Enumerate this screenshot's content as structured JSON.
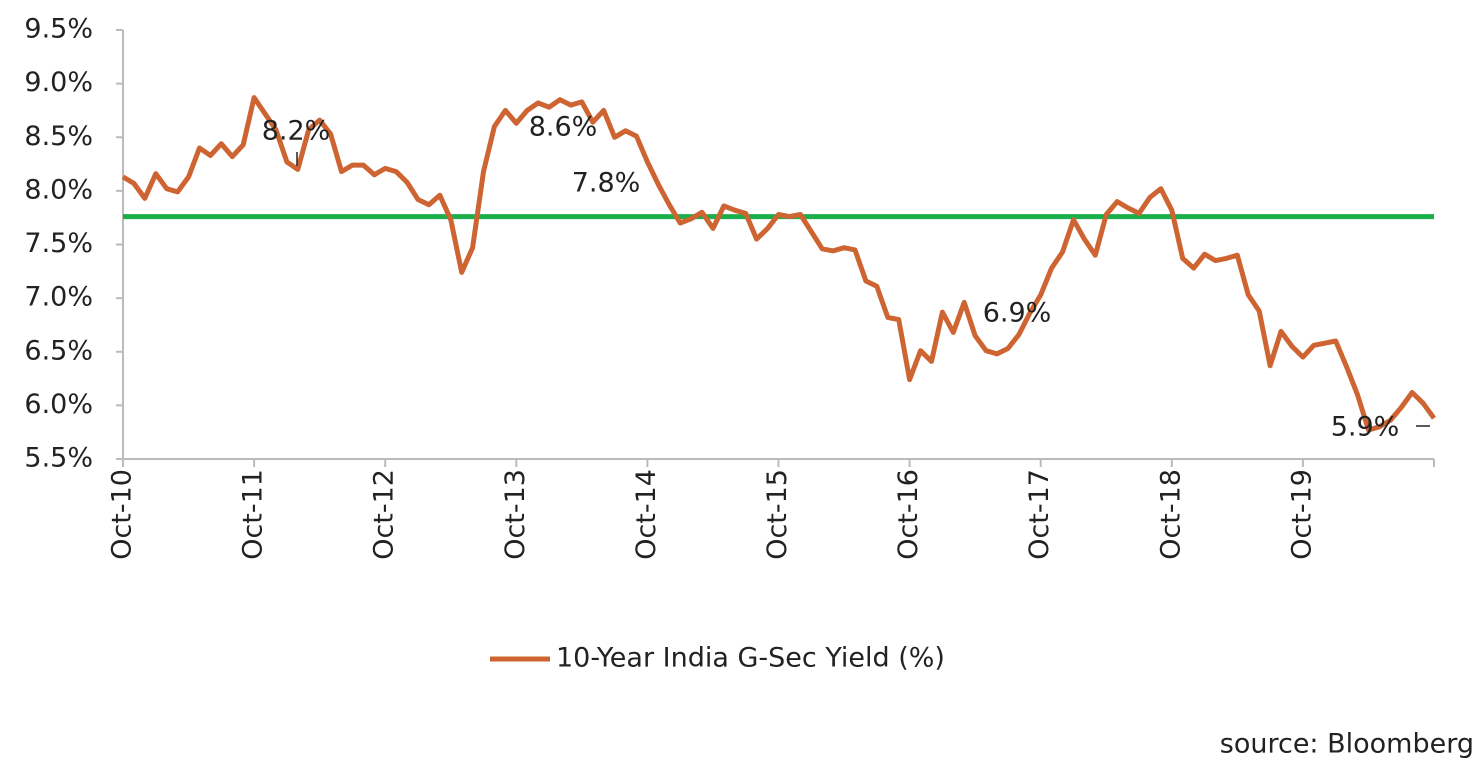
{
  "chart_data": {
    "type": "line",
    "x": [
      "2010-10",
      "2010-11",
      "2010-12",
      "2011-01",
      "2011-02",
      "2011-03",
      "2011-04",
      "2011-05",
      "2011-06",
      "2011-07",
      "2011-08",
      "2011-09",
      "2011-10",
      "2011-11",
      "2011-12",
      "2012-01",
      "2012-02",
      "2012-03",
      "2012-04",
      "2012-05",
      "2012-06",
      "2012-07",
      "2012-08",
      "2012-09",
      "2012-10",
      "2012-11",
      "2012-12",
      "2013-01",
      "2013-02",
      "2013-03",
      "2013-04",
      "2013-05",
      "2013-06",
      "2013-07",
      "2013-08",
      "2013-09",
      "2013-10",
      "2013-11",
      "2013-12",
      "2014-01",
      "2014-02",
      "2014-03",
      "2014-04",
      "2014-05",
      "2014-06",
      "2014-07",
      "2014-08",
      "2014-09",
      "2014-10",
      "2014-11",
      "2014-12",
      "2015-01",
      "2015-02",
      "2015-03",
      "2015-04",
      "2015-05",
      "2015-06",
      "2015-07",
      "2015-08",
      "2015-09",
      "2015-10",
      "2015-11",
      "2015-12",
      "2016-01",
      "2016-02",
      "2016-03",
      "2016-04",
      "2016-05",
      "2016-06",
      "2016-07",
      "2016-08",
      "2016-09",
      "2016-10",
      "2016-11",
      "2016-12",
      "2017-01",
      "2017-02",
      "2017-03",
      "2017-04",
      "2017-05",
      "2017-06",
      "2017-07",
      "2017-08",
      "2017-09",
      "2017-10",
      "2017-11",
      "2017-12",
      "2018-01",
      "2018-02",
      "2018-03",
      "2018-04",
      "2018-05",
      "2018-06",
      "2018-07",
      "2018-08",
      "2018-09",
      "2018-10",
      "2018-11",
      "2018-12",
      "2019-01",
      "2019-02",
      "2019-03",
      "2019-04",
      "2019-05",
      "2019-06",
      "2019-07",
      "2019-08",
      "2019-09",
      "2019-10",
      "2019-11",
      "2019-12",
      "2020-01",
      "2020-02",
      "2020-03",
      "2020-04",
      "2020-05",
      "2020-06",
      "2020-07",
      "2020-08",
      "2020-09",
      "2020-10"
    ],
    "series": [
      {
        "name": "10-Year India G-Sec Yield (%)",
        "color": "#cd6432",
        "values": [
          8.13,
          8.07,
          7.93,
          8.16,
          8.02,
          7.99,
          8.13,
          8.4,
          8.33,
          8.44,
          8.32,
          8.43,
          8.87,
          8.72,
          8.57,
          8.27,
          8.2,
          8.57,
          8.66,
          8.53,
          8.18,
          8.24,
          8.24,
          8.15,
          8.21,
          8.18,
          8.08,
          7.92,
          7.87,
          7.96,
          7.73,
          7.24,
          7.47,
          8.18,
          8.6,
          8.75,
          8.63,
          8.75,
          8.82,
          8.78,
          8.85,
          8.8,
          8.83,
          8.64,
          8.75,
          8.5,
          8.56,
          8.51,
          8.27,
          8.06,
          7.87,
          7.7,
          7.74,
          7.8,
          7.65,
          7.86,
          7.82,
          7.79,
          7.55,
          7.65,
          7.78,
          7.76,
          7.78,
          7.62,
          7.46,
          7.44,
          7.47,
          7.45,
          7.16,
          7.11,
          6.82,
          6.8,
          6.24,
          6.51,
          6.41,
          6.87,
          6.68,
          6.96,
          6.65,
          6.51,
          6.48,
          6.53,
          6.66,
          6.86,
          7.03,
          7.28,
          7.43,
          7.73,
          7.55,
          7.4,
          7.78,
          7.9,
          7.84,
          7.79,
          7.94,
          8.02,
          7.82,
          7.37,
          7.28,
          7.41,
          7.35,
          7.37,
          7.4,
          7.03,
          6.88,
          6.37,
          6.69,
          6.55,
          6.45,
          6.56,
          6.58,
          6.6,
          6.36,
          6.1,
          5.77,
          5.8,
          5.86,
          5.98,
          6.12,
          6.02,
          5.88
        ]
      }
    ],
    "reference_line": {
      "value": 7.76,
      "color": "#1aaf4b"
    },
    "annotations": [
      "8.2%",
      "8.6%",
      "7.8%",
      "6.9%",
      "5.9%"
    ],
    "xlim": [
      "2010-10",
      "2020-10"
    ],
    "xticks": [
      {
        "value": "2010-10",
        "label": "Oct-10"
      },
      {
        "value": "2011-10",
        "label": "Oct-11"
      },
      {
        "value": "2012-10",
        "label": "Oct-12"
      },
      {
        "value": "2013-10",
        "label": "Oct-13"
      },
      {
        "value": "2014-10",
        "label": "Oct-14"
      },
      {
        "value": "2015-10",
        "label": "Oct-15"
      },
      {
        "value": "2016-10",
        "label": "Oct-16"
      },
      {
        "value": "2017-10",
        "label": "Oct-17"
      },
      {
        "value": "2018-10",
        "label": "Oct-18"
      },
      {
        "value": "2019-10",
        "label": "Oct-19"
      }
    ],
    "ylim": [
      5.5,
      9.5
    ],
    "yticks": [
      {
        "value": 5.5,
        "label": "5.5%"
      },
      {
        "value": 6.0,
        "label": "6.0%"
      },
      {
        "value": 6.5,
        "label": "6.5%"
      },
      {
        "value": 7.0,
        "label": "7.0%"
      },
      {
        "value": 7.5,
        "label": "7.5%"
      },
      {
        "value": 8.0,
        "label": "8.0%"
      },
      {
        "value": 8.5,
        "label": "8.5%"
      },
      {
        "value": 9.0,
        "label": "9.0%"
      },
      {
        "value": 9.5,
        "label": "9.5%"
      }
    ],
    "legend": "bottom",
    "source": "source: Bloomberg"
  }
}
